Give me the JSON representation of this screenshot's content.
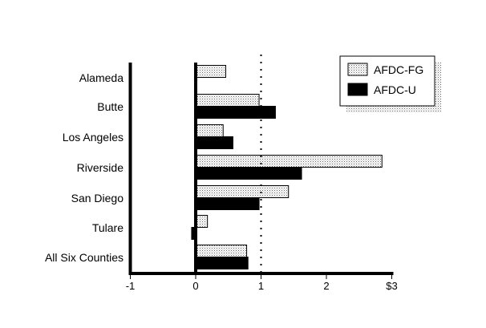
{
  "chart_data": {
    "type": "bar",
    "orientation": "horizontal",
    "categories": [
      "Alameda",
      "Butte",
      "Los Angeles",
      "Riverside",
      "San Diego",
      "Tulare",
      "All Six Counties"
    ],
    "series": [
      {
        "name": "AFDC-FG",
        "values": [
          0.46,
          0.97,
          0.42,
          2.85,
          1.42,
          0.18,
          0.78
        ]
      },
      {
        "name": "AFDC-U",
        "values": [
          null,
          1.22,
          0.57,
          1.62,
          0.97,
          -0.05,
          0.8
        ]
      }
    ],
    "x_ticks": [
      "-1",
      "0",
      "1",
      "2",
      "$3"
    ],
    "xlim": [
      -1,
      3
    ],
    "reference_line_at": 1,
    "legend_position": "top-right",
    "colors": {
      "AFDC-FG": "#dcdcdc",
      "AFDC-U": "#000000"
    }
  }
}
